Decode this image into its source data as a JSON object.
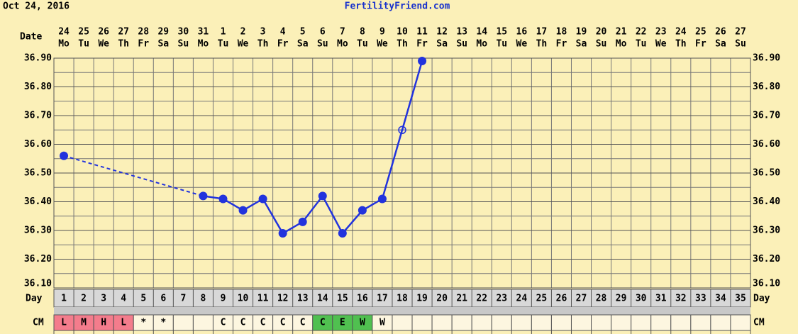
{
  "chart_data": {
    "type": "line",
    "header_date": "Oct 24, 2016",
    "title": "FertilityFriend.com",
    "date_row_label": "Date",
    "day_row_label": "Day",
    "cm_row_label": "CM",
    "dates": [
      "24",
      "25",
      "26",
      "27",
      "28",
      "29",
      "30",
      "31",
      "1",
      "2",
      "3",
      "4",
      "5",
      "6",
      "7",
      "8",
      "9",
      "10",
      "11",
      "12",
      "13",
      "14",
      "15",
      "16",
      "17",
      "18",
      "19",
      "20",
      "21",
      "22",
      "23",
      "24",
      "25",
      "26",
      "27"
    ],
    "weekdays": [
      "Mo",
      "Tu",
      "We",
      "Th",
      "Fr",
      "Sa",
      "Su",
      "Mo",
      "Tu",
      "We",
      "Th",
      "Fr",
      "Sa",
      "Su",
      "Mo",
      "Tu",
      "We",
      "Th",
      "Fr",
      "Sa",
      "Su",
      "Mo",
      "Tu",
      "We",
      "Th",
      "Fr",
      "Sa",
      "Su",
      "Mo",
      "Tu",
      "We",
      "Th",
      "Fr",
      "Sa",
      "Su"
    ],
    "days": [
      "1",
      "2",
      "3",
      "4",
      "5",
      "6",
      "7",
      "8",
      "9",
      "10",
      "11",
      "12",
      "13",
      "14",
      "15",
      "16",
      "17",
      "18",
      "19",
      "20",
      "21",
      "22",
      "23",
      "24",
      "25",
      "26",
      "27",
      "28",
      "29",
      "30",
      "31",
      "32",
      "33",
      "34",
      "35"
    ],
    "cm": [
      "L",
      "M",
      "H",
      "L",
      "*",
      "*",
      null,
      null,
      "C",
      "C",
      "C",
      "C",
      "C",
      "C",
      "E",
      "W",
      "W",
      null,
      null,
      null,
      null,
      null,
      null,
      null,
      null,
      null,
      null,
      null,
      null,
      null,
      null,
      null,
      null,
      null,
      null
    ],
    "cm_colors": [
      "#f47c8c",
      "#f47c8c",
      "#f47c8c",
      "#f47c8c",
      "#fdf6e0",
      "#fdf6e0",
      "#fdf6e0",
      "#fdf6e0",
      "#fdf6e0",
      "#fdf6e0",
      "#fdf6e0",
      "#fdf6e0",
      "#fdf6e0",
      "#50c050",
      "#50c050",
      "#50c050",
      "#fdf6e0",
      "#fdf6e0",
      "#fdf6e0",
      "#fdf6e0",
      "#fdf6e0",
      "#fdf6e0",
      "#fdf6e0",
      "#fdf6e0",
      "#fdf6e0",
      "#fdf6e0",
      "#fdf6e0",
      "#fdf6e0",
      "#fdf6e0",
      "#fdf6e0",
      "#fdf6e0",
      "#fdf6e0",
      "#fdf6e0",
      "#fdf6e0",
      "#fdf6e0"
    ],
    "series": [
      {
        "color": "#2233dd",
        "values": [
          36.56,
          null,
          null,
          null,
          null,
          null,
          null,
          36.42,
          36.41,
          36.37,
          36.41,
          36.29,
          36.33,
          36.42,
          36.29,
          36.37,
          36.41,
          36.65,
          36.89,
          null,
          null,
          null,
          null,
          null,
          null,
          null,
          null,
          null,
          null,
          null,
          null,
          null,
          null,
          null,
          null
        ],
        "markers": [
          "filled",
          null,
          null,
          null,
          null,
          null,
          null,
          "filled",
          "filled",
          "filled",
          "filled",
          "filled",
          "filled",
          "filled",
          "filled",
          "filled",
          "filled",
          "open",
          "filled",
          null,
          null,
          null,
          null,
          null,
          null,
          null,
          null,
          null,
          null,
          null,
          null,
          null,
          null,
          null,
          null
        ]
      }
    ],
    "ylim": [
      36.1,
      36.9
    ],
    "yticks": [
      {
        "value": 36.1,
        "label": "36.10"
      },
      {
        "value": 36.2,
        "label": "36.20"
      },
      {
        "value": 36.3,
        "label": "36.30"
      },
      {
        "value": 36.4,
        "label": "36.40"
      },
      {
        "value": 36.5,
        "label": "36.50"
      },
      {
        "value": 36.6,
        "label": "36.60"
      },
      {
        "value": 36.7,
        "label": "36.70"
      },
      {
        "value": 36.8,
        "label": "36.80"
      },
      {
        "value": 36.9,
        "label": "36.90"
      }
    ],
    "yticks_minor": [
      36.15,
      36.25,
      36.35,
      36.45,
      36.55,
      36.65,
      36.75,
      36.85
    ],
    "grid": true
  }
}
